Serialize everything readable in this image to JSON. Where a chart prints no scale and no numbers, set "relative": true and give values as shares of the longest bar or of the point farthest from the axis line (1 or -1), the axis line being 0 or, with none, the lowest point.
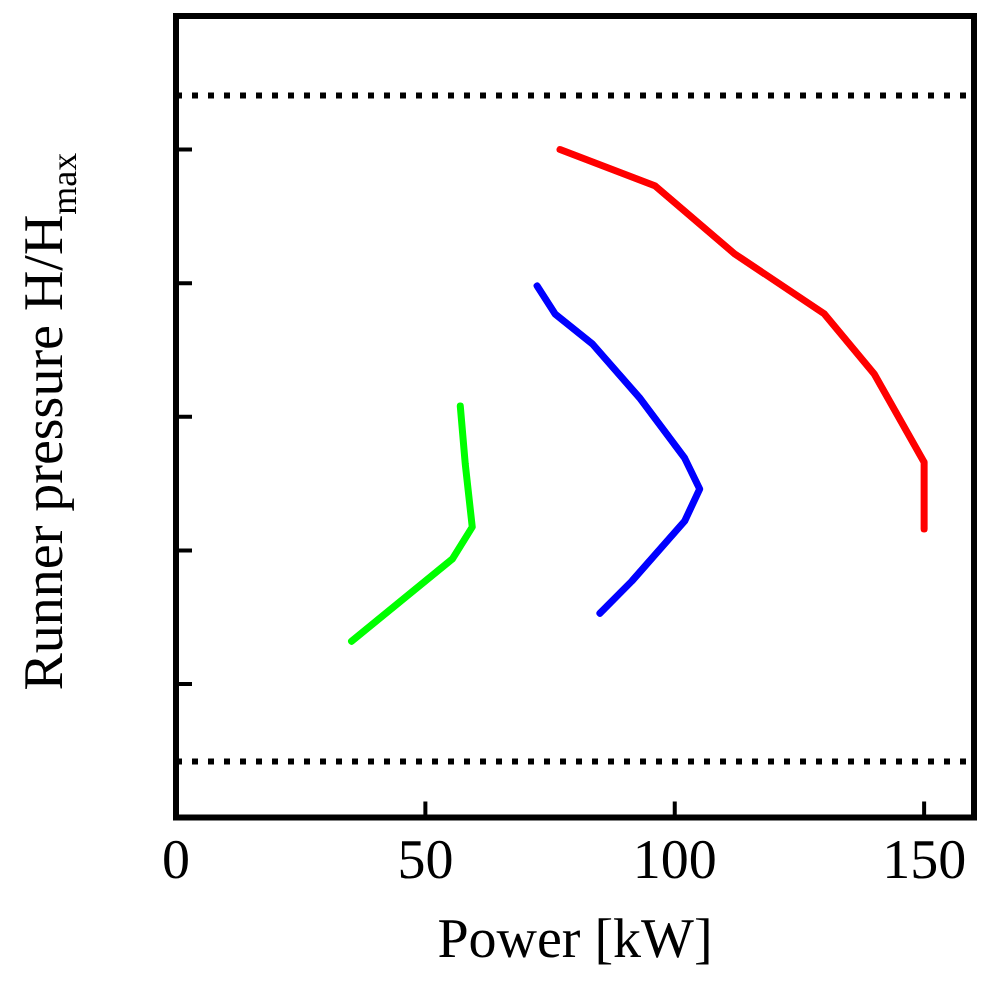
{
  "chart_data": {
    "type": "line",
    "xlabel": "Power [kW]",
    "ylabel": "Runner pressure H/H$_{max}$",
    "relative": true,
    "xlim": [
      0,
      160
    ],
    "xticks": [
      0,
      50,
      100,
      150
    ],
    "line_style": "solid",
    "marker": "none",
    "grid": false,
    "legend": false,
    "ref_lines": [
      {
        "axis": "y",
        "value": 1.081,
        "line_style": "dotted",
        "color": "#000000"
      },
      {
        "axis": "y",
        "value": 0.084,
        "line_style": "dotted",
        "color": "#000000"
      }
    ],
    "series": [
      {
        "color": "#ff0000",
        "x": [
          77,
          96,
          112,
          130,
          140,
          150,
          150
        ],
        "values": [
          1,
          0.946,
          0.844,
          0.754,
          0.664,
          0.532,
          0.432
        ]
      },
      {
        "color": "#0000ff",
        "x": [
          72.4,
          76,
          83.5,
          93,
          102,
          105,
          102,
          91.4,
          85
        ],
        "values": [
          0.796,
          0.754,
          0.709,
          0.628,
          0.538,
          0.492,
          0.444,
          0.354,
          0.306
        ]
      },
      {
        "color": "#00ff00",
        "x": [
          57,
          58,
          59.4,
          55.4,
          35.2
        ],
        "values": [
          0.616,
          0.529,
          0.435,
          0.387,
          0.264
        ]
      }
    ]
  }
}
